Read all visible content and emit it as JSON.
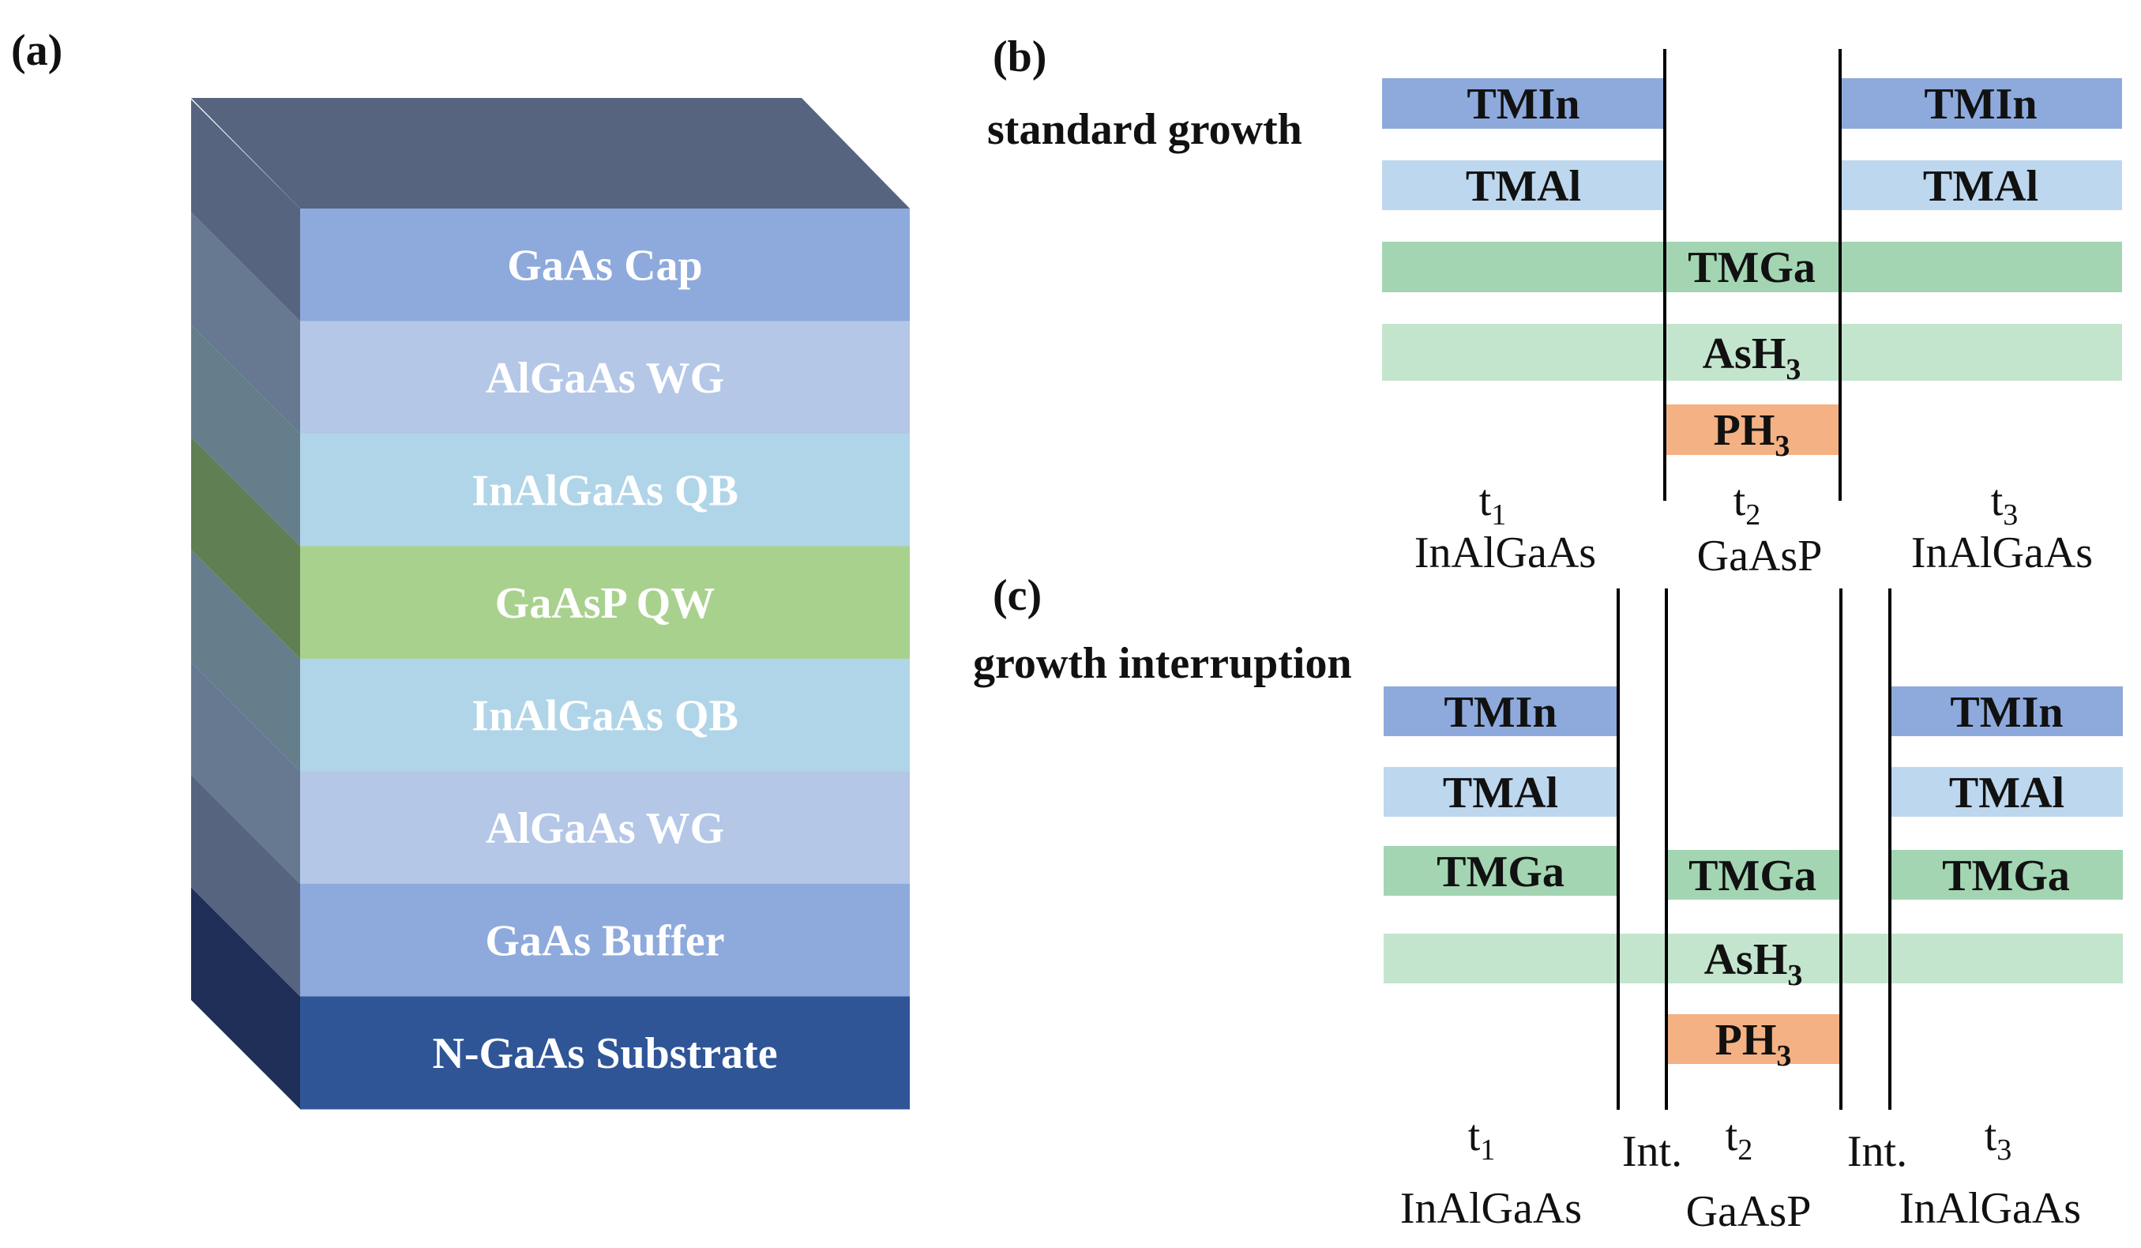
{
  "panel_a": {
    "label": "(a)",
    "layers": [
      {
        "name": "GaAs Cap",
        "color": "#8eaadc",
        "side": "#56647f"
      },
      {
        "name": "AlGaAs WG",
        "color": "#b4c7e7",
        "side": "#677891"
      },
      {
        "name": "InAlGaAs QB",
        "color": "#b1d5e8",
        "side": "#647f8b"
      },
      {
        "name": "GaAsP QW",
        "color": "#a9d18e",
        "side": "#607f52"
      },
      {
        "name": "InAlGaAs QB",
        "color": "#b1d5e8",
        "side": "#647f8b"
      },
      {
        "name": "AlGaAs WG",
        "color": "#b4c7e7",
        "side": "#677891"
      },
      {
        "name": "GaAs Buffer",
        "color": "#8eaadc",
        "side": "#56647f"
      },
      {
        "name": "N-GaAs Substrate",
        "color": "#2f5597",
        "side": "#1f2f58"
      }
    ],
    "top_color": "#56647f"
  },
  "panel_b": {
    "label": "(b)",
    "title": "standard growth",
    "bars": [
      {
        "id": "b-tmin-1",
        "text": "TMIn",
        "color": "#8eaadc"
      },
      {
        "id": "b-tmin-3",
        "text": "TMIn",
        "color": "#8eaadc"
      },
      {
        "id": "b-tmal-1",
        "text": "TMAl",
        "color": "#bdd7ee"
      },
      {
        "id": "b-tmal-3",
        "text": "TMAl",
        "color": "#bdd7ee"
      },
      {
        "id": "b-tmga",
        "text": "TMGa",
        "color": "#a3d5b3"
      },
      {
        "id": "b-ash3",
        "text": "AsH",
        "sub": "3",
        "color": "#c4e5cd"
      },
      {
        "id": "b-ph3",
        "text": "PH",
        "sub": "3",
        "color": "#f4b183"
      }
    ],
    "times": [
      {
        "t": "t",
        "sub": "1",
        "material": "InAlGaAs"
      },
      {
        "t": "t",
        "sub": "2",
        "material": "GaAsP"
      },
      {
        "t": "t",
        "sub": "3",
        "material": "InAlGaAs"
      }
    ]
  },
  "panel_c": {
    "label": "(c)",
    "title": "growth interruption",
    "bars": [
      {
        "id": "c-tmin-1",
        "text": "TMIn",
        "color": "#8eaadc"
      },
      {
        "id": "c-tmin-3",
        "text": "TMIn",
        "color": "#8eaadc"
      },
      {
        "id": "c-tmal-1",
        "text": "TMAl",
        "color": "#bdd7ee"
      },
      {
        "id": "c-tmal-3",
        "text": "TMAl",
        "color": "#bdd7ee"
      },
      {
        "id": "c-tmga-1",
        "text": "TMGa",
        "color": "#a3d5b3"
      },
      {
        "id": "c-tmga-2",
        "text": "TMGa",
        "color": "#a3d5b3"
      },
      {
        "id": "c-tmga-3",
        "text": "TMGa",
        "color": "#a3d5b3"
      },
      {
        "id": "c-ash3",
        "text": "AsH",
        "sub": "3",
        "color": "#c4e5cd"
      },
      {
        "id": "c-ph3",
        "text": "PH",
        "sub": "3",
        "color": "#f4b183"
      }
    ],
    "times": [
      {
        "t": "t",
        "sub": "1",
        "material": "InAlGaAs"
      },
      {
        "t": "t",
        "sub": "2",
        "material": "GaAsP"
      },
      {
        "t": "t",
        "sub": "3",
        "material": "InAlGaAs"
      }
    ],
    "interruption_label": "Int."
  }
}
